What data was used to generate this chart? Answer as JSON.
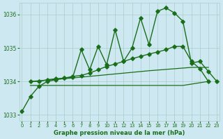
{
  "title": "Graphe pression niveau de la mer (hPa)",
  "bg_color": "#cde8f0",
  "grid_color": "#aacccc",
  "line_color": "#1a6e1a",
  "xlim": [
    -0.3,
    23.3
  ],
  "ylim": [
    1032.82,
    1036.35
  ],
  "yticks": [
    1033,
    1034,
    1035,
    1036
  ],
  "xticks": [
    0,
    1,
    2,
    3,
    4,
    5,
    6,
    7,
    8,
    9,
    10,
    11,
    12,
    13,
    14,
    15,
    16,
    17,
    18,
    19,
    20,
    21,
    22,
    23
  ],
  "series": [
    {
      "x": [
        0,
        1,
        2,
        3,
        4,
        5,
        6,
        7,
        8,
        9,
        10,
        11,
        12,
        13,
        14,
        15,
        16,
        17,
        18,
        19,
        20,
        21,
        22,
        23
      ],
      "y": [
        1033.1,
        1033.55,
        1033.85,
        1034.0,
        1034.05,
        1034.1,
        1034.12,
        1034.95,
        1034.35,
        1035.05,
        1034.5,
        1035.55,
        1034.6,
        1035.0,
        1035.9,
        1035.1,
        1036.1,
        1036.2,
        1036.05,
        1035.8,
        1034.55,
        1034.6,
        1034.3,
        1034.0
      ],
      "marker": "D",
      "markersize": 2.8,
      "lw": 1.0
    },
    {
      "x": [
        1,
        2,
        3,
        4,
        5,
        6,
        7,
        8,
        9,
        10,
        11,
        12,
        13,
        14,
        15,
        16,
        17,
        18,
        19,
        20,
        21,
        22
      ],
      "y": [
        1034.0,
        1034.0,
        1034.05,
        1034.08,
        1034.1,
        1034.15,
        1034.18,
        1034.25,
        1034.35,
        1034.45,
        1034.52,
        1034.6,
        1034.68,
        1034.75,
        1034.82,
        1034.88,
        1034.95,
        1035.05,
        1035.05,
        1034.6,
        1034.38,
        1034.0
      ],
      "marker": "D",
      "markersize": 2.8,
      "lw": 1.0
    },
    {
      "x": [
        1,
        5,
        10,
        15,
        20,
        22
      ],
      "y": [
        1034.0,
        1034.08,
        1034.2,
        1034.32,
        1034.42,
        1034.42
      ],
      "marker": null,
      "markersize": 0,
      "lw": 0.9
    },
    {
      "x": [
        1,
        5,
        10,
        14,
        19,
        22
      ],
      "y": [
        1033.88,
        1033.88,
        1033.88,
        1033.88,
        1033.88,
        1034.0
      ],
      "marker": null,
      "markersize": 0,
      "lw": 0.9
    }
  ]
}
